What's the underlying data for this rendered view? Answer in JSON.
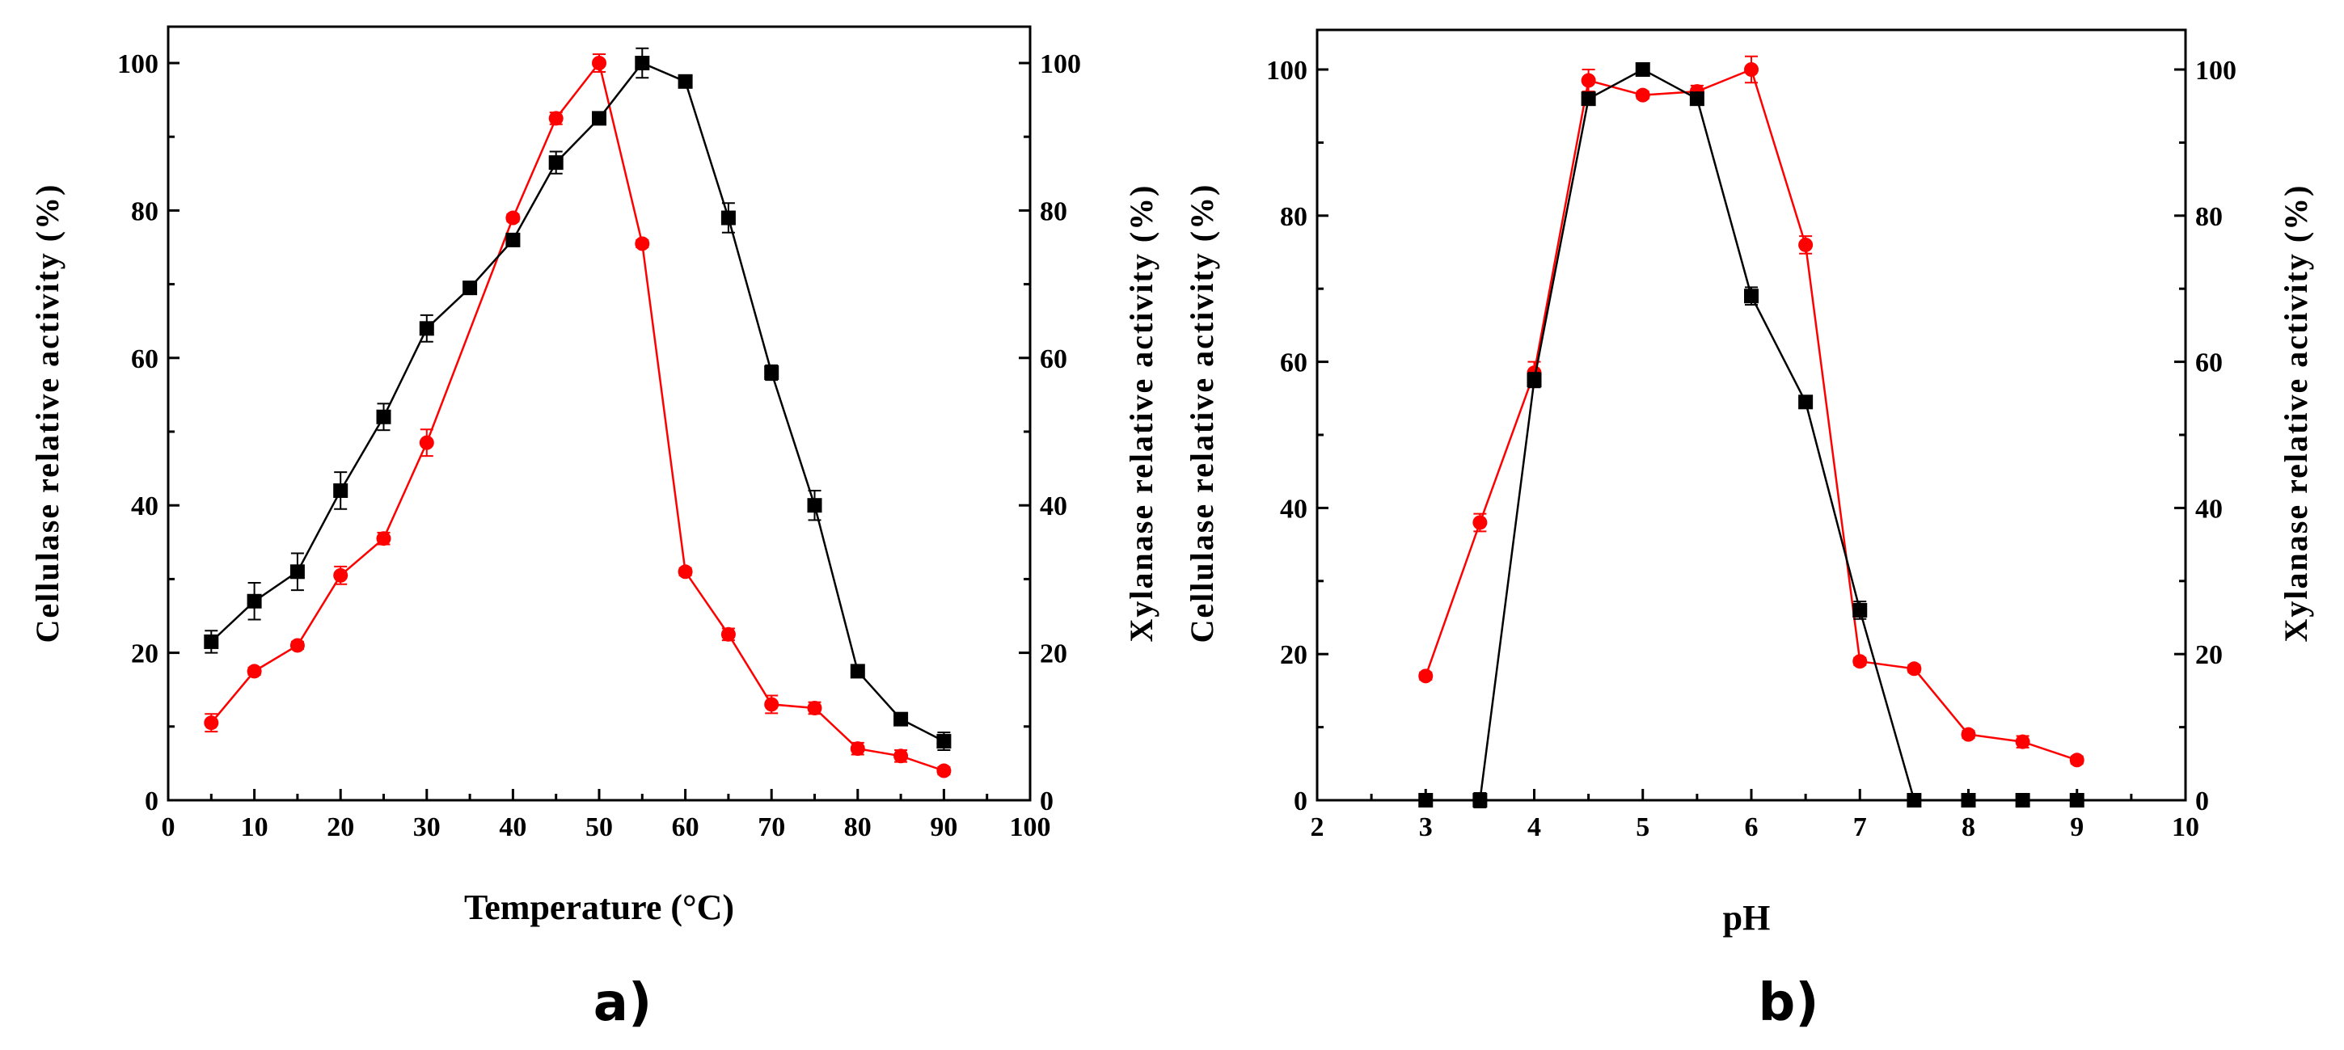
{
  "figure": {
    "panels": [
      "a",
      "b"
    ]
  },
  "colors": {
    "cellulase": "#000000",
    "xylanase": "#ff0000",
    "axis": "#000000"
  },
  "chart_data": [
    {
      "type": "line",
      "panel_label": "a)",
      "xlabel": "Temperature (°C)",
      "ylabel_left": "Cellulase relative activity (%)",
      "ylabel_right": "Xylanase relative activity (%)",
      "xlim": [
        0,
        100
      ],
      "ylim": [
        0,
        105
      ],
      "xticks": [
        0,
        10,
        20,
        30,
        40,
        50,
        60,
        70,
        80,
        90,
        100
      ],
      "yticks": [
        0,
        20,
        40,
        60,
        80,
        100
      ],
      "grid": false,
      "series": [
        {
          "name": "Cellulase",
          "axis": "left",
          "marker": "square",
          "x": [
            5,
            10,
            15,
            20,
            25,
            30,
            35,
            40,
            45,
            50,
            55,
            60,
            65,
            70,
            75,
            80,
            85,
            90
          ],
          "y": [
            21.5,
            27,
            31,
            42,
            52,
            64,
            69.5,
            76,
            86.5,
            92.5,
            100,
            97.5,
            79,
            58,
            40,
            17.5,
            11,
            8
          ],
          "err": [
            1.5,
            2.5,
            2.5,
            2.5,
            1.8,
            1.8,
            0.5,
            0.5,
            1.5,
            0.5,
            2,
            0.5,
            2,
            1,
            2,
            0.5,
            0.5,
            1.2
          ]
        },
        {
          "name": "Xylanase",
          "axis": "right",
          "marker": "circle",
          "x": [
            5,
            10,
            15,
            20,
            25,
            30,
            40,
            45,
            50,
            55,
            60,
            65,
            70,
            75,
            80,
            85,
            90
          ],
          "y": [
            10.5,
            17.5,
            21,
            30.5,
            35.5,
            48.5,
            79,
            92.5,
            100,
            75.5,
            31,
            22.5,
            13,
            12.5,
            7,
            6,
            4
          ],
          "err": [
            1.2,
            0.5,
            0.5,
            1.2,
            0.8,
            1.8,
            0.5,
            0.8,
            1.2,
            0.5,
            0.5,
            0.8,
            1.2,
            0.8,
            0.8,
            0.8,
            0.5
          ]
        }
      ]
    },
    {
      "type": "line",
      "panel_label": "b)",
      "xlabel": "pH",
      "ylabel_left": "Cellulase relative activity (%)",
      "ylabel_right": "Xylanase relative activity (%)",
      "xlim": [
        2,
        10
      ],
      "ylim": [
        0,
        105
      ],
      "xticks": [
        2,
        3,
        4,
        5,
        6,
        7,
        8,
        9,
        10
      ],
      "yticks": [
        0,
        20,
        40,
        60,
        80,
        100
      ],
      "grid": false,
      "series": [
        {
          "name": "Cellulase",
          "axis": "left",
          "marker": "square",
          "x": [
            3,
            3.5,
            4,
            4.5,
            5,
            5.5,
            6,
            6.5,
            7,
            7.5,
            8,
            8.5,
            9
          ],
          "y": [
            0,
            0,
            57.5,
            96,
            100,
            96,
            69,
            54.5,
            26,
            0,
            0,
            0,
            0
          ],
          "err": [
            0,
            1,
            1,
            0.5,
            0.5,
            0.5,
            1.2,
            0.5,
            1.2,
            0,
            0,
            0,
            0
          ]
        },
        {
          "name": "Xylanase",
          "axis": "right",
          "marker": "circle",
          "x": [
            3,
            3.5,
            4,
            4.5,
            5,
            5.5,
            6,
            6.5,
            7,
            7.5,
            8,
            8.5,
            9
          ],
          "y": [
            17,
            38,
            58.5,
            98.5,
            96.5,
            97,
            100,
            76,
            19,
            18,
            9,
            8,
            5.5
          ],
          "err": [
            0.5,
            1.2,
            1.5,
            1.5,
            0.5,
            0.8,
            1.8,
            1.2,
            0.5,
            0.5,
            0.5,
            0.8,
            0.5
          ]
        }
      ]
    }
  ]
}
